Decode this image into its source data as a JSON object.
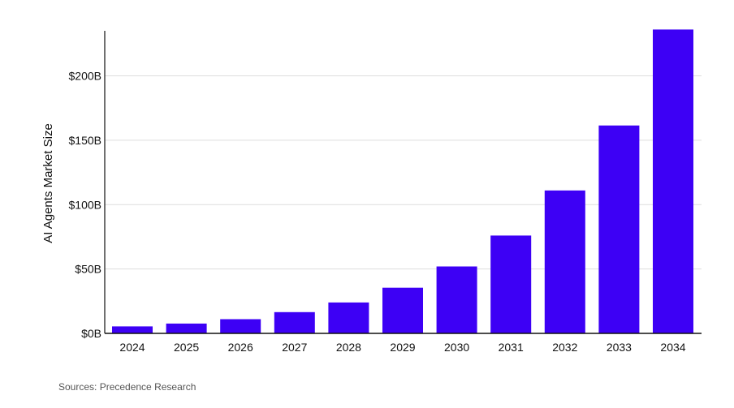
{
  "source_note": "Sources: Precedence Research",
  "colors": {
    "bar": "#3d00f5",
    "grid": "#dddddd",
    "axis": "#111111"
  },
  "chart_data": {
    "type": "bar",
    "xlabel": "",
    "ylabel": "AI Agents Market Size",
    "ylim": [
      0,
      235
    ],
    "grid": true,
    "yticks": [
      {
        "value": 0,
        "label": "$0B"
      },
      {
        "value": 50,
        "label": "$50B"
      },
      {
        "value": 100,
        "label": "$100B"
      },
      {
        "value": 150,
        "label": "$150B"
      },
      {
        "value": 200,
        "label": "$200B"
      }
    ],
    "categories": [
      "2024",
      "2025",
      "2026",
      "2027",
      "2028",
      "2029",
      "2030",
      "2031",
      "2032",
      "2033",
      "2034"
    ],
    "values": [
      5.4,
      7.6,
      11.0,
      16.5,
      24.0,
      35.5,
      52.0,
      76.0,
      111.0,
      161.5,
      236.0
    ]
  }
}
